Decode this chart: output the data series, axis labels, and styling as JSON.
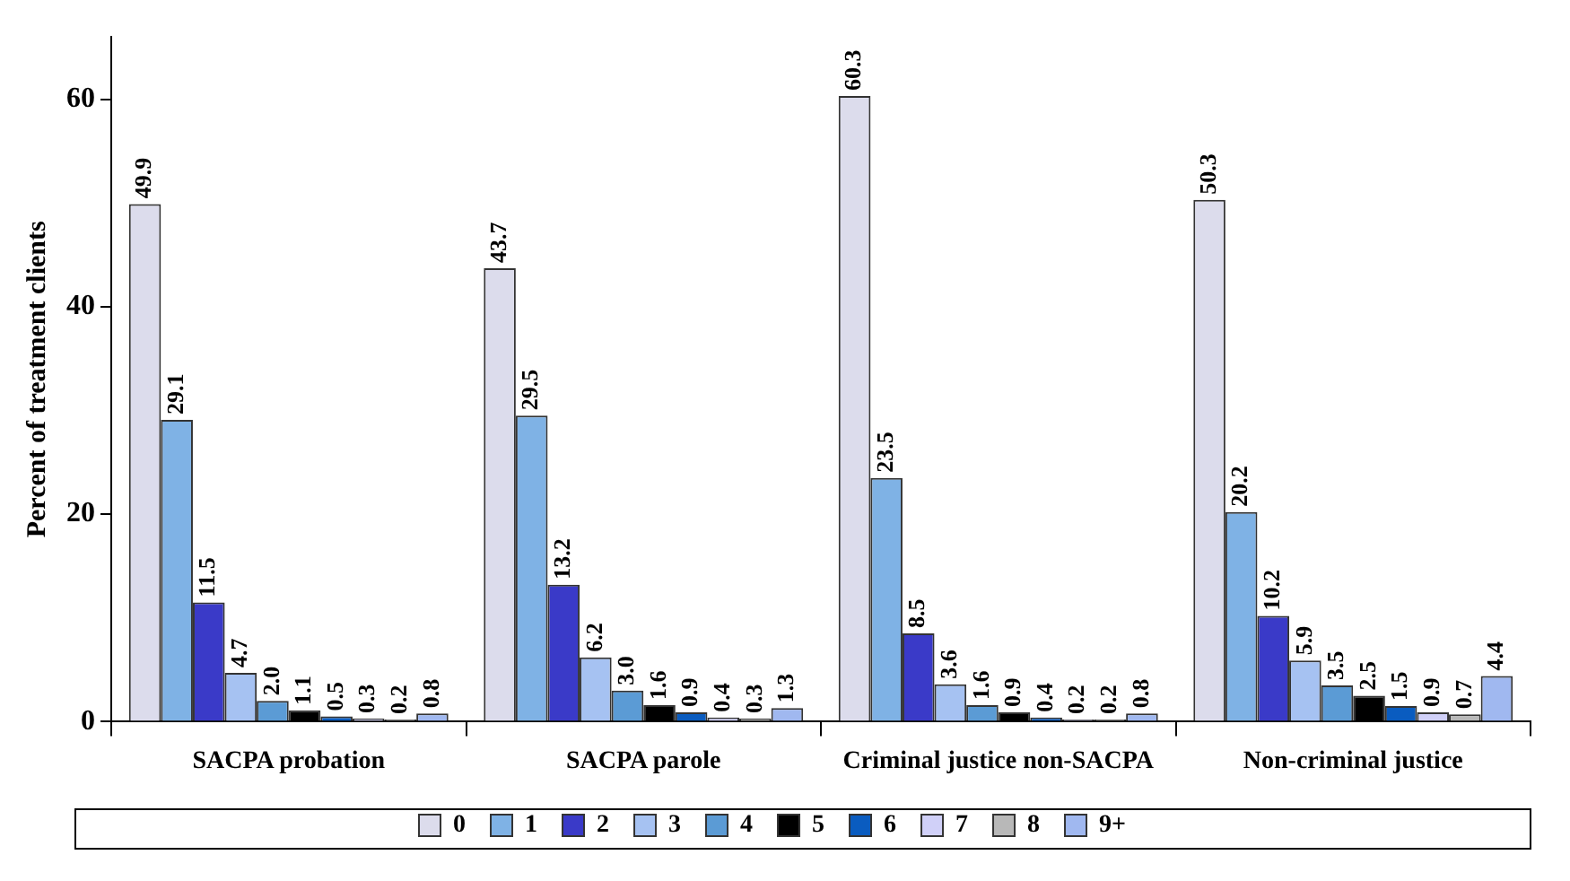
{
  "chart_data": {
    "type": "bar",
    "ylabel": "Percent of treatment clients",
    "categories": [
      "SACPA probation",
      "SACPA parole",
      "Criminal justice non-SACPA",
      "Non-criminal justice"
    ],
    "series": [
      {
        "name": "0",
        "color": "#dcdcec",
        "values": [
          49.9,
          43.7,
          60.3,
          50.3
        ],
        "value_labels": [
          "49.9",
          "43.7",
          "60.3",
          "50.3"
        ]
      },
      {
        "name": "1",
        "color": "#7fb2e5",
        "values": [
          29.1,
          29.5,
          23.5,
          20.2
        ],
        "value_labels": [
          "29.1",
          "29.5",
          "23.5",
          "20.2"
        ]
      },
      {
        "name": "2",
        "color": "#3a3ac8",
        "values": [
          11.5,
          13.2,
          8.5,
          10.2
        ],
        "value_labels": [
          "11.5",
          "13.2",
          "8.5",
          "10.2"
        ]
      },
      {
        "name": "3",
        "color": "#a6c2f2",
        "values": [
          4.7,
          6.2,
          3.6,
          5.9
        ],
        "value_labels": [
          "4.7",
          "6.2",
          "3.6",
          "5.9"
        ]
      },
      {
        "name": "4",
        "color": "#5b9bd5",
        "values": [
          2,
          3,
          1.6,
          3.5
        ],
        "value_labels": [
          "2.0",
          "3.0",
          "1.6",
          "3.5"
        ]
      },
      {
        "name": "5",
        "color": "#000000",
        "values": [
          1.1,
          1.6,
          0.9,
          2.5
        ],
        "value_labels": [
          "1.1",
          "1.6",
          "0.9",
          "2.5"
        ]
      },
      {
        "name": "6",
        "color": "#0a5cc0",
        "values": [
          0.5,
          0.9,
          0.4,
          1.5
        ],
        "value_labels": [
          "0.5",
          "0.9",
          "0.4",
          "1.5"
        ]
      },
      {
        "name": "7",
        "color": "#d0d0f8",
        "values": [
          0.3,
          0.4,
          0.2,
          0.9
        ],
        "value_labels": [
          "0.3",
          "0.4",
          "0.2",
          "0.9"
        ]
      },
      {
        "name": "8",
        "color": "#b8b8b8",
        "values": [
          0.2,
          0.3,
          0.2,
          0.7
        ],
        "value_labels": [
          "0.2",
          "0.3",
          "0.2",
          "0.7"
        ]
      },
      {
        "name": "9+",
        "color": "#a0b8f0",
        "values": [
          0.8,
          1.3,
          0.8,
          4.4
        ],
        "value_labels": [
          "0.8",
          "1.3",
          "0.8",
          "4.4"
        ]
      }
    ],
    "ylim": [
      0,
      66
    ],
    "yticks": [
      0,
      20,
      40,
      60
    ],
    "grid": false,
    "legend": "bottom"
  }
}
